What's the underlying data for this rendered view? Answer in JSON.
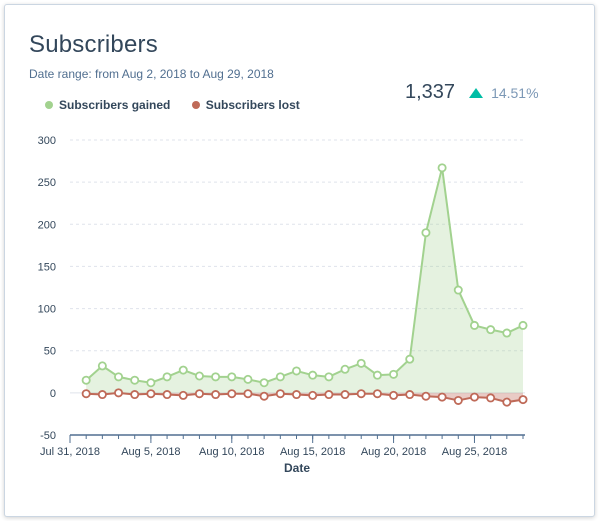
{
  "title": "Subscribers",
  "date_range": "Date range: from Aug 2, 2018 to Aug 29, 2018",
  "total": "1,337",
  "change_pct": "14.51%",
  "colors": {
    "gained": "#a2d28f",
    "lost": "#bf6a58",
    "trend_up": "#00bda5"
  },
  "chart_data": {
    "type": "line",
    "xlabel": "Date",
    "ylabel": "",
    "ylim": [
      -50,
      300
    ],
    "yticks": [
      300,
      250,
      200,
      150,
      100,
      50,
      0,
      -50
    ],
    "xticks": [
      {
        "label": "Jul 31, 2018",
        "day": 0
      },
      {
        "label": "Aug 5, 2018",
        "day": 5
      },
      {
        "label": "Aug 10, 2018",
        "day": 10
      },
      {
        "label": "Aug 15, 2018",
        "day": 15
      },
      {
        "label": "Aug 20, 2018",
        "day": 20
      },
      {
        "label": "Aug 25, 2018",
        "day": 25
      }
    ],
    "x": [
      "Aug 1",
      "Aug 2",
      "Aug 3",
      "Aug 4",
      "Aug 5",
      "Aug 6",
      "Aug 7",
      "Aug 8",
      "Aug 9",
      "Aug 10",
      "Aug 11",
      "Aug 12",
      "Aug 13",
      "Aug 14",
      "Aug 15",
      "Aug 16",
      "Aug 17",
      "Aug 18",
      "Aug 19",
      "Aug 20",
      "Aug 21",
      "Aug 22",
      "Aug 23",
      "Aug 24",
      "Aug 25",
      "Aug 26",
      "Aug 27",
      "Aug 28"
    ],
    "x_day": [
      1,
      2,
      3,
      4,
      5,
      6,
      7,
      8,
      9,
      10,
      11,
      12,
      13,
      14,
      15,
      16,
      17,
      18,
      19,
      20,
      21,
      22,
      23,
      24,
      25,
      26,
      27,
      28
    ],
    "grid": true,
    "legend": "top-left",
    "series": [
      {
        "name": "Subscribers gained",
        "color": "#a2d28f",
        "values": [
          15,
          32,
          19,
          15,
          12,
          19,
          27,
          20,
          19,
          19,
          16,
          12,
          19,
          26,
          21,
          19,
          28,
          35,
          21,
          22,
          40,
          190,
          267,
          122,
          80,
          75,
          71,
          80
        ]
      },
      {
        "name": "Subscribers lost",
        "color": "#bf6a58",
        "values": [
          -1,
          -2,
          0,
          -2,
          -1,
          -2,
          -3,
          -1,
          -2,
          -1,
          -1,
          -4,
          -1,
          -2,
          -3,
          -2,
          -2,
          -1,
          -1,
          -3,
          -2,
          -4,
          -5,
          -9,
          -5,
          -6,
          -11,
          -8
        ]
      }
    ]
  }
}
